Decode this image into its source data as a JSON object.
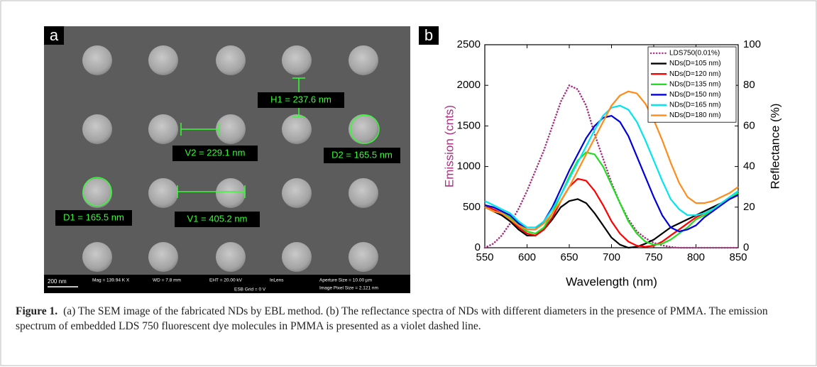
{
  "panel_a": {
    "label": "a",
    "annotations": {
      "h1": "H1 = 237.6 nm",
      "v2": "V2 = 229.1 nm",
      "d2": "D2 = 165.5 nm",
      "d1": "D1 = 165.5 nm",
      "v1": "V1 = 405.2 nm"
    },
    "footer": [
      "200 nm",
      "Mag = 139.94 K X",
      "WD = 7.8 mm",
      "EHT = 20.00 kV",
      "InLens",
      "Aperture Size = 10.00 µm",
      "ESB Grid = 0 V",
      "Image Pixel Size = 2.121 nm"
    ]
  },
  "panel_b": {
    "label": "b"
  },
  "chart_data": {
    "type": "line",
    "xlabel": "Wavelength (nm)",
    "ylabel": "Emission (cnts)",
    "y2label": "Reflectance (%)",
    "y_label_color": "#a8317f",
    "xlim": [
      550,
      850
    ],
    "xticks": [
      550,
      600,
      650,
      700,
      750,
      800,
      850
    ],
    "ylim": [
      0,
      2500
    ],
    "yticks": [
      0,
      500,
      1000,
      1500,
      2000,
      2500
    ],
    "y2lim": [
      0,
      100
    ],
    "y2ticks": [
      0,
      20,
      40,
      60,
      80,
      100
    ],
    "x": [
      550,
      560,
      570,
      580,
      590,
      600,
      610,
      620,
      630,
      640,
      650,
      660,
      670,
      680,
      690,
      700,
      710,
      720,
      730,
      740,
      750,
      760,
      770,
      780,
      790,
      800,
      810,
      820,
      830,
      840,
      850
    ],
    "series": [
      {
        "name": "LDS750(0.01%)",
        "color": "#a8317f",
        "line_style": "dotted",
        "values": [
          0,
          50,
          150,
          300,
          480,
          700,
          950,
          1200,
          1500,
          1800,
          2000,
          1950,
          1750,
          1400,
          1100,
          800,
          550,
          350,
          200,
          120,
          60,
          30,
          10,
          0,
          0,
          0,
          0,
          0,
          0,
          0,
          0
        ]
      },
      {
        "name": "NDs(D=105 nm)",
        "color": "#000000",
        "axis": "y2",
        "values": [
          20,
          18,
          16,
          13,
          9,
          6,
          6,
          9,
          14,
          20,
          23,
          24,
          22,
          17,
          11,
          5,
          1.5,
          0,
          0.5,
          2,
          4,
          7,
          10,
          12,
          14,
          16,
          18,
          20,
          22,
          24,
          26
        ]
      },
      {
        "name": "NDs(D=120 nm)",
        "color": "#ff0000",
        "axis": "y2",
        "values": [
          21,
          19,
          17,
          14,
          10,
          7,
          6,
          9,
          15,
          23,
          30,
          34,
          33,
          28,
          21,
          13,
          7,
          3,
          1,
          0.5,
          1,
          3,
          6,
          9,
          12,
          15,
          17,
          19,
          22,
          24,
          26
        ]
      },
      {
        "name": "NDs(D=135 nm)",
        "color": "#22dd22",
        "axis": "y2",
        "values": [
          21,
          20,
          18,
          15,
          11,
          8,
          7,
          10,
          17,
          26,
          35,
          43,
          47,
          46,
          40,
          31,
          22,
          13,
          7,
          3,
          1.5,
          2,
          4,
          7,
          10,
          14,
          16,
          19,
          22,
          24,
          27
        ]
      },
      {
        "name": "NDs(D=150 nm)",
        "color": "#0000dd",
        "axis": "y2",
        "values": [
          21,
          20,
          18,
          16,
          12,
          9,
          9,
          13,
          20,
          29,
          38,
          46,
          54,
          60,
          64,
          65,
          62,
          55,
          45,
          35,
          25,
          16,
          10,
          8,
          9,
          11,
          15,
          18,
          21,
          24,
          26
        ]
      },
      {
        "name": "NDs(D=165 nm)",
        "color": "#00e5ee",
        "axis": "y2",
        "values": [
          23,
          21,
          19,
          17,
          13,
          10,
          10,
          13,
          19,
          26,
          34,
          42,
          50,
          58,
          65,
          69,
          70,
          68,
          62,
          53,
          43,
          33,
          24,
          19,
          16,
          16,
          17,
          19,
          22,
          25,
          28
        ]
      },
      {
        "name": "NDs(D=180 nm)",
        "color": "#ff8c1a",
        "axis": "y2",
        "values": [
          20,
          18,
          17,
          14,
          11,
          9,
          9,
          12,
          17,
          23,
          30,
          38,
          46,
          54,
          62,
          70,
          75,
          77,
          76,
          71,
          63,
          53,
          42,
          32,
          25,
          22,
          22,
          23,
          25,
          27,
          30
        ]
      }
    ]
  },
  "caption": {
    "label": "Figure 1.",
    "text": "(a) The SEM image of the fabricated NDs by EBL method. (b) The reflectance spectra of NDs with different diameters in the presence of PMMA. The emission spectrum of embedded LDS 750 fluorescent dye molecules in PMMA is presented as a violet dashed line."
  }
}
